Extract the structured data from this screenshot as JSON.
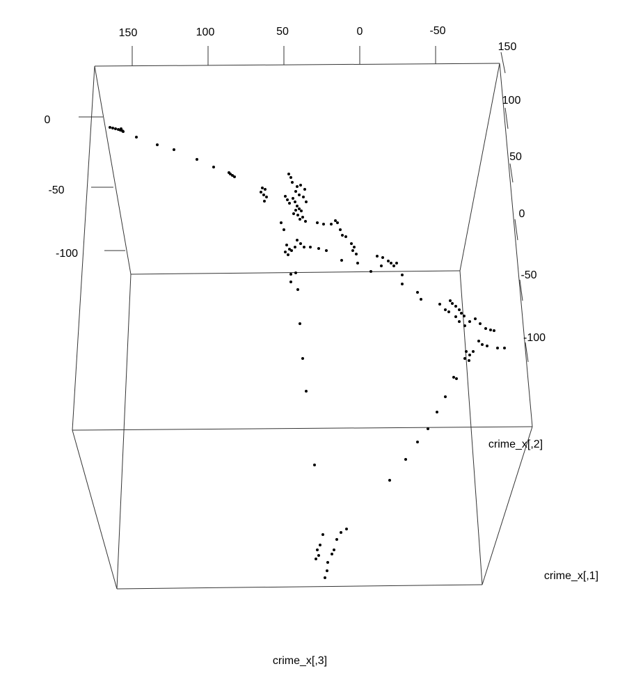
{
  "chart_data": {
    "type": "scatter",
    "title": "",
    "xlabel": "crime_x[,3]",
    "ylabel": "crime_x[,2]",
    "zlabel": "crime_x[,1]",
    "top_axis": {
      "ticks": [
        "150",
        "100",
        "50",
        "0",
        "-50"
      ]
    },
    "left_axis": {
      "ticks": [
        "0",
        "-50",
        "-100"
      ]
    },
    "right_axis": {
      "ticks": [
        "150",
        "100",
        "50",
        "0",
        "-50",
        "-100"
      ]
    },
    "point_color": "#000000",
    "box_color": "#333333",
    "points": [
      [
        158,
        183
      ],
      [
        162,
        184
      ],
      [
        166,
        185
      ],
      [
        170,
        186
      ],
      [
        173,
        187
      ],
      [
        176,
        188
      ],
      [
        174,
        185
      ],
      [
        177,
        189
      ],
      [
        196,
        197
      ],
      [
        226,
        208
      ],
      [
        250,
        215
      ],
      [
        283,
        229
      ],
      [
        307,
        240
      ],
      [
        329,
        248
      ],
      [
        331,
        250
      ],
      [
        334,
        252
      ],
      [
        337,
        254
      ],
      [
        377,
        270
      ],
      [
        381,
        272
      ],
      [
        375,
        276
      ],
      [
        379,
        280
      ],
      [
        383,
        283
      ],
      [
        380,
        289
      ],
      [
        415,
        250
      ],
      [
        418,
        255
      ],
      [
        420,
        262
      ],
      [
        427,
        268
      ],
      [
        432,
        266
      ],
      [
        438,
        272
      ],
      [
        425,
        275
      ],
      [
        430,
        280
      ],
      [
        436,
        283
      ],
      [
        440,
        290
      ],
      [
        410,
        282
      ],
      [
        413,
        287
      ],
      [
        416,
        292
      ],
      [
        421,
        285
      ],
      [
        424,
        290
      ],
      [
        427,
        296
      ],
      [
        430,
        300
      ],
      [
        425,
        302
      ],
      [
        422,
        307
      ],
      [
        428,
        309
      ],
      [
        433,
        303
      ],
      [
        435,
        312
      ],
      [
        431,
        315
      ],
      [
        439,
        318
      ],
      [
        456,
        320
      ],
      [
        465,
        322
      ],
      [
        476,
        322
      ],
      [
        482,
        317
      ],
      [
        485,
        320
      ],
      [
        489,
        330
      ],
      [
        492,
        338
      ],
      [
        497,
        340
      ],
      [
        404,
        320
      ],
      [
        408,
        330
      ],
      [
        412,
        352
      ],
      [
        416,
        358
      ],
      [
        410,
        362
      ],
      [
        414,
        366
      ],
      [
        419,
        360
      ],
      [
        424,
        355
      ],
      [
        427,
        345
      ],
      [
        432,
        350
      ],
      [
        437,
        355
      ],
      [
        446,
        355
      ],
      [
        458,
        357
      ],
      [
        469,
        360
      ],
      [
        505,
        350
      ],
      [
        509,
        355
      ],
      [
        507,
        360
      ],
      [
        512,
        365
      ],
      [
        491,
        374
      ],
      [
        514,
        378
      ],
      [
        533,
        390
      ],
      [
        418,
        394
      ],
      [
        425,
        392
      ],
      [
        418,
        405
      ],
      [
        428,
        416
      ],
      [
        542,
        368
      ],
      [
        550,
        370
      ],
      [
        558,
        375
      ],
      [
        562,
        378
      ],
      [
        566,
        382
      ],
      [
        570,
        378
      ],
      [
        548,
        382
      ],
      [
        578,
        395
      ],
      [
        578,
        408
      ],
      [
        600,
        420
      ],
      [
        605,
        430
      ],
      [
        632,
        437
      ],
      [
        640,
        445
      ],
      [
        647,
        432
      ],
      [
        650,
        436
      ],
      [
        655,
        440
      ],
      [
        660,
        445
      ],
      [
        663,
        450
      ],
      [
        667,
        454
      ],
      [
        645,
        448
      ],
      [
        655,
        455
      ],
      [
        660,
        462
      ],
      [
        668,
        468
      ],
      [
        675,
        462
      ],
      [
        683,
        458
      ],
      [
        690,
        465
      ],
      [
        698,
        472
      ],
      [
        705,
        474
      ],
      [
        710,
        475
      ],
      [
        688,
        490
      ],
      [
        693,
        495
      ],
      [
        700,
        497
      ],
      [
        715,
        500
      ],
      [
        725,
        500
      ],
      [
        670,
        505
      ],
      [
        675,
        510
      ],
      [
        680,
        505
      ],
      [
        668,
        515
      ],
      [
        674,
        518
      ],
      [
        431,
        465
      ],
      [
        435,
        515
      ],
      [
        440,
        562
      ],
      [
        652,
        542
      ],
      [
        656,
        544
      ],
      [
        640,
        570
      ],
      [
        628,
        592
      ],
      [
        615,
        616
      ],
      [
        600,
        635
      ],
      [
        583,
        660
      ],
      [
        560,
        690
      ],
      [
        452,
        668
      ],
      [
        498,
        760
      ],
      [
        490,
        765
      ],
      [
        484,
        775
      ],
      [
        464,
        768
      ],
      [
        460,
        783
      ],
      [
        456,
        790
      ],
      [
        458,
        798
      ],
      [
        454,
        803
      ],
      [
        471,
        808
      ],
      [
        470,
        820
      ],
      [
        467,
        830
      ],
      [
        480,
        790
      ],
      [
        477,
        796
      ]
    ]
  }
}
